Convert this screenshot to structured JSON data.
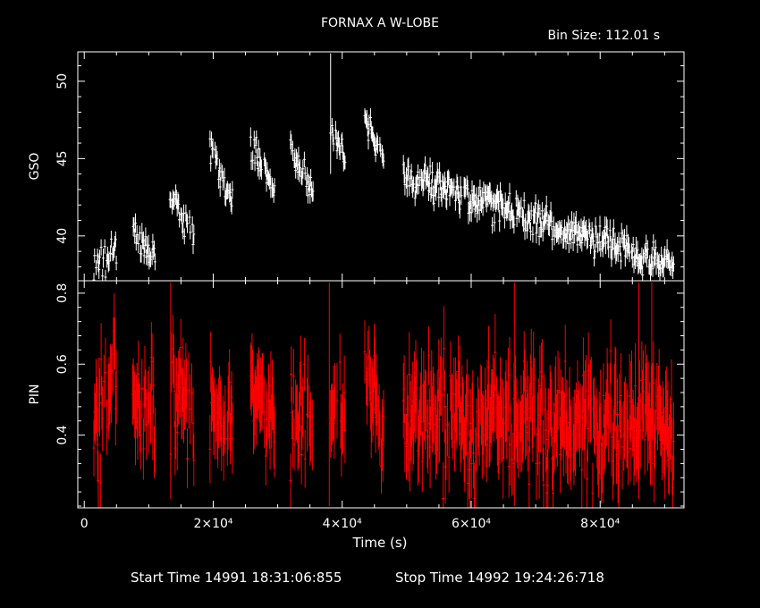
{
  "colors": {
    "background": "#000000",
    "axes": "#ffffff",
    "gso_series": "#ffffff",
    "pin_series": "#ff0000"
  },
  "header": {
    "title": "FORNAX A W-LOBE",
    "bin_size": "Bin Size: 112.01 s"
  },
  "footer": {
    "start_time": "Start Time 14991 18:31:06:855",
    "stop_time": "Stop Time 14992 19:24:26:718"
  },
  "chart_data": [
    {
      "type": "scatter",
      "ylabel": "GSO",
      "xlim": [
        -1000,
        93000
      ],
      "ylim": [
        37.1,
        51.9
      ],
      "yticks": [
        {
          "v": 40,
          "label": "40"
        },
        {
          "v": 45,
          "label": "45"
        },
        {
          "v": 50,
          "label": "50"
        }
      ],
      "errorbars": true,
      "series": [
        {
          "segments": [
            {
              "t0": 1500,
              "t1": 5000,
              "y0": 38.4,
              "y1": 38.7,
              "sd": 0.55,
              "err": 0.55
            },
            {
              "t0": 7500,
              "t1": 11000,
              "y0": 40.2,
              "y1": 38.3,
              "sd": 0.5,
              "err": 0.55
            },
            {
              "t0": 13300,
              "t1": 17000,
              "y0": 43.2,
              "y1": 39.9,
              "sd": 0.55,
              "err": 0.55
            },
            {
              "t0": 19500,
              "t1": 23000,
              "y0": 45.8,
              "y1": 41.9,
              "sd": 0.5,
              "err": 0.55
            },
            {
              "t0": 25800,
              "t1": 29500,
              "y0": 45.9,
              "y1": 42.9,
              "sd": 0.5,
              "err": 0.55
            },
            {
              "t0": 32000,
              "t1": 35500,
              "y0": 45.6,
              "y1": 43.1,
              "sd": 0.5,
              "err": 0.55
            },
            {
              "t0": 38200,
              "t1": 40500,
              "y0": 46.9,
              "y1": 44.8,
              "sd": 0.45,
              "err": 0.55
            },
            {
              "t0": 43500,
              "t1": 46500,
              "y0": 47.8,
              "y1": 44.5,
              "sd": 0.45,
              "err": 0.55
            },
            {
              "t0": 49500,
              "t1": 91500,
              "y0": 44.0,
              "y1": 38.0,
              "sd": 0.55,
              "err": 0.6
            }
          ],
          "spikes": [
            {
              "t": 38200,
              "y0": 44.0,
              "y1": 51.8
            }
          ]
        }
      ]
    },
    {
      "type": "scatter",
      "ylabel": "PIN",
      "xlabel": "Time (s)",
      "xlim": [
        -1000,
        93000
      ],
      "ylim": [
        0.195,
        0.835
      ],
      "yticks": [
        {
          "v": 0.4,
          "label": "0.4"
        },
        {
          "v": 0.6,
          "label": "0.6"
        },
        {
          "v": 0.8,
          "label": "0.8"
        }
      ],
      "xticks": [
        {
          "v": 0,
          "label": "0"
        },
        {
          "v": 20000,
          "label": "2×10⁴"
        },
        {
          "v": 40000,
          "label": "4×10⁴"
        },
        {
          "v": 60000,
          "label": "6×10⁴"
        },
        {
          "v": 80000,
          "label": "8×10⁴"
        }
      ],
      "errorbars": true,
      "series": [
        {
          "segments": [
            {
              "t0": 1500,
              "t1": 5000,
              "y0": 0.38,
              "y1": 0.6,
              "sd": 0.07,
              "err": 0.09
            },
            {
              "t0": 7500,
              "t1": 11000,
              "y0": 0.45,
              "y1": 0.48,
              "sd": 0.07,
              "err": 0.09
            },
            {
              "t0": 13300,
              "t1": 17000,
              "y0": 0.5,
              "y1": 0.42,
              "sd": 0.08,
              "err": 0.09
            },
            {
              "t0": 19500,
              "t1": 23000,
              "y0": 0.5,
              "y1": 0.43,
              "sd": 0.07,
              "err": 0.09
            },
            {
              "t0": 25800,
              "t1": 29500,
              "y0": 0.53,
              "y1": 0.44,
              "sd": 0.06,
              "err": 0.09
            },
            {
              "t0": 32000,
              "t1": 35500,
              "y0": 0.45,
              "y1": 0.48,
              "sd": 0.08,
              "err": 0.09
            },
            {
              "t0": 38200,
              "t1": 40500,
              "y0": 0.52,
              "y1": 0.45,
              "sd": 0.06,
              "err": 0.09
            },
            {
              "t0": 43500,
              "t1": 46500,
              "y0": 0.6,
              "y1": 0.4,
              "sd": 0.07,
              "err": 0.09
            },
            {
              "t0": 49500,
              "t1": 91500,
              "y0": 0.45,
              "y1": 0.42,
              "sd": 0.08,
              "err": 0.1
            }
          ],
          "spikes": [
            {
              "t": 13400,
              "y0": 0.22,
              "y1": 0.83
            },
            {
              "t": 38000,
              "y0": 0.2,
              "y1": 0.83
            },
            {
              "t": 66700,
              "y0": 0.2,
              "y1": 0.83
            },
            {
              "t": 86000,
              "y0": 0.22,
              "y1": 0.83
            },
            {
              "t": 88000,
              "y0": 0.3,
              "y1": 0.83
            }
          ]
        }
      ]
    }
  ]
}
